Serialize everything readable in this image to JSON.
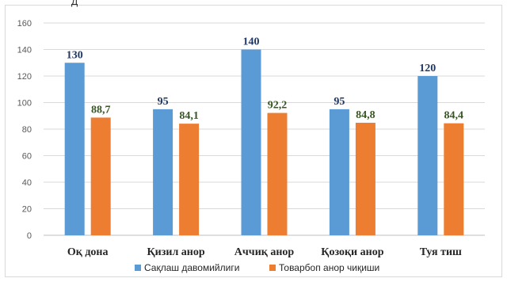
{
  "chart_data": {
    "type": "bar",
    "title": "",
    "xlabel": "",
    "ylabel": "",
    "ylim": [
      0,
      160
    ],
    "yticks": [
      0,
      20,
      40,
      60,
      80,
      100,
      120,
      140,
      160
    ],
    "grid": true,
    "legend_position": "bottom",
    "categories": [
      "Оқ дона",
      "Қизил анор",
      "Аччиқ анор",
      "Қозоқи анор",
      "Туя тиш"
    ],
    "series": [
      {
        "name": "Сақлаш давомийлиги",
        "values": [
          130,
          95,
          140,
          95,
          120
        ],
        "labels": [
          "130",
          "95",
          "140",
          "95",
          "120"
        ],
        "color": "#5B9BD5",
        "label_color": "#1F3864"
      },
      {
        "name": "Товарбоп анор чиқиши",
        "values": [
          88.7,
          84.1,
          92.2,
          84.8,
          84.4
        ],
        "labels": [
          "88,7",
          "84,1",
          "92,2",
          "84,8",
          "84,4"
        ],
        "color": "#ED7D31",
        "label_color": "#375623"
      }
    ]
  }
}
